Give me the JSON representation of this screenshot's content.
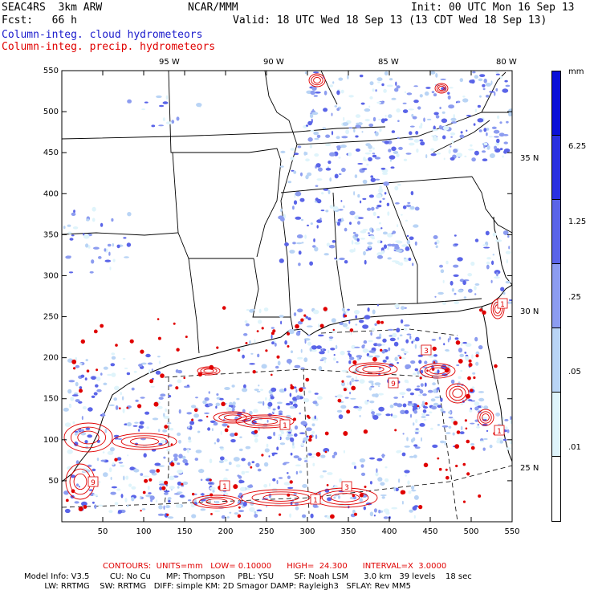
{
  "header": {
    "model": "SEAC4RS  3km ARW",
    "org": "NCAR/MMM",
    "init": "Init: 00 UTC Mon 16 Sep 13",
    "fcst": "Fcst:   66 h",
    "valid": "Valid: 18 UTC Wed 18 Sep 13 (13 CDT Wed 18 Sep 13)",
    "legend_cloud": "Column-integ. cloud hydrometeors",
    "legend_precip": "Column-integ. precip. hydrometeors"
  },
  "axes": {
    "lon_labels": [
      "95 W",
      "90 W",
      "85 W",
      "80 W"
    ],
    "lat_labels": [
      "35 N",
      "30 N",
      "25 N"
    ],
    "x_ticks": [
      "50",
      "100",
      "150",
      "200",
      "250",
      "300",
      "350",
      "400",
      "450",
      "500",
      "550"
    ],
    "y_ticks": [
      "550",
      "500",
      "450",
      "400",
      "350",
      "300",
      "250",
      "200",
      "150",
      "100",
      "50"
    ]
  },
  "colorbar": {
    "unit": "mm",
    "labels": [
      "6.25",
      "1.25",
      ".25",
      ".05",
      ".01"
    ],
    "colors": [
      "#ffffff",
      "#dff4fb",
      "#b9d4f5",
      "#8c9cf0",
      "#5a64e8",
      "#2a30e0",
      "#0a10d8"
    ]
  },
  "contour_labels": [
    "3",
    "9",
    "1",
    "1",
    "9",
    "1",
    "1",
    "3",
    "1"
  ],
  "footer": {
    "contours": "CONTOURS:  UNITS=mm   LOW= 0.10000      HIGH=  24.300      INTERVAL=X  3.0000",
    "line1": "Model Info: V3.5        CU: No Cu      MP: Thompson     PBL: YSU        SF: Noah LSM      3.0 km   39 levels    18 sec",
    "line2": "        LW: RRTMG    SW: RRTMG   DIFF: simple KM: 2D Smagor DAMP: Rayleigh3   SFLAY: Rev MM5"
  },
  "colors": {
    "cloud": "#1a1acc",
    "precip": "#e00000"
  }
}
